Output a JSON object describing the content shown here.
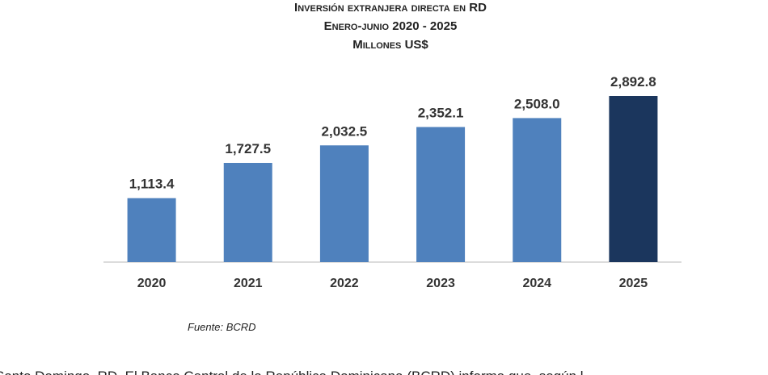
{
  "chart_data": {
    "type": "bar",
    "title": [
      "Inversión extranjera directa en RD",
      "Enero-junio 2020 - 2025",
      "Millones US$"
    ],
    "categories": [
      "2020",
      "2021",
      "2022",
      "2023",
      "2024",
      "2025"
    ],
    "values": [
      1113.4,
      1727.5,
      2032.5,
      2352.1,
      2508.0,
      2892.8
    ],
    "value_labels": [
      "1,113.4",
      "1,727.5",
      "2,032.5",
      "2,352.1",
      "2,508.0",
      "2,892.8"
    ],
    "colors": [
      "#4f81bd",
      "#4f81bd",
      "#4f81bd",
      "#4f81bd",
      "#4f81bd",
      "#1b365d"
    ],
    "source": "Fuente: BCRD"
  },
  "article": {
    "text": "Santo Domingo, RD. El Banco Central de la República Dominicana (BCRD) informa que, según l"
  }
}
